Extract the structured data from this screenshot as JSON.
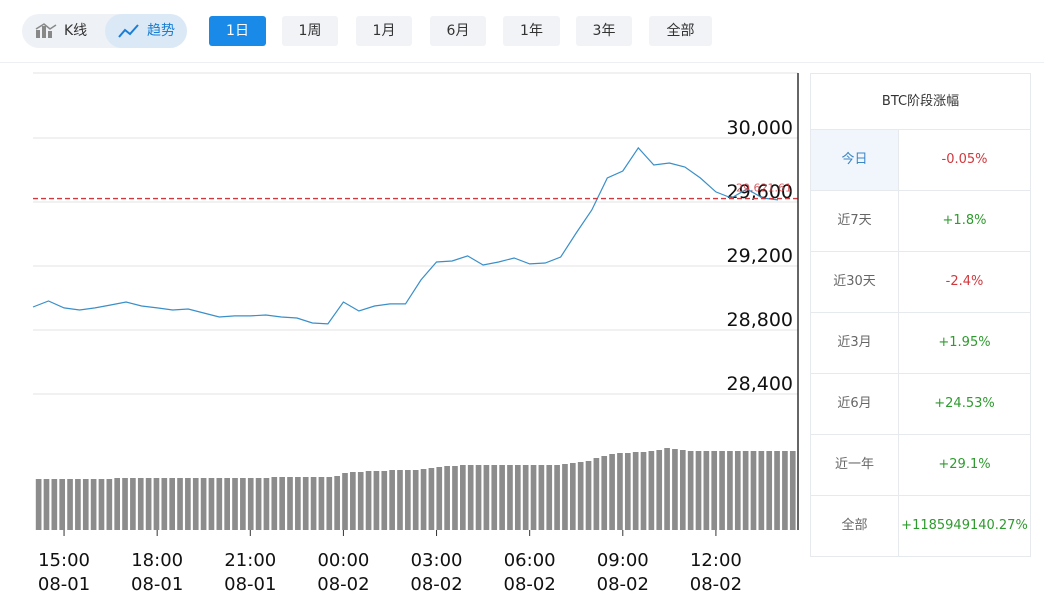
{
  "toolbar": {
    "modes": [
      "K线",
      "趋势"
    ],
    "active_mode": 1,
    "ranges": [
      "1日",
      "1周",
      "1月",
      "6月",
      "1年",
      "3年",
      "全部"
    ],
    "active_range": 0
  },
  "chart_data": [
    {
      "type": "line",
      "color": "#3a8fc8",
      "x": [
        "08-01 14:00",
        "08-01 14:30",
        "08-01 15:00",
        "08-01 15:30",
        "08-01 16:00",
        "08-01 16:30",
        "08-01 17:00",
        "08-01 17:30",
        "08-01 18:00",
        "08-01 18:30",
        "08-01 19:00",
        "08-01 19:30",
        "08-01 20:00",
        "08-01 20:30",
        "08-01 21:00",
        "08-01 21:30",
        "08-01 22:00",
        "08-01 22:30",
        "08-01 23:00",
        "08-01 23:30",
        "08-02 00:00",
        "08-02 00:30",
        "08-02 01:00",
        "08-02 01:30",
        "08-02 02:00",
        "08-02 02:30",
        "08-02 03:00",
        "08-02 03:30",
        "08-02 04:00",
        "08-02 04:30",
        "08-02 05:00",
        "08-02 05:30",
        "08-02 06:00",
        "08-02 06:30",
        "08-02 07:00",
        "08-02 07:30",
        "08-02 08:00",
        "08-02 08:30",
        "08-02 09:00",
        "08-02 09:30",
        "08-02 10:00",
        "08-02 10:30",
        "08-02 11:00",
        "08-02 11:30",
        "08-02 12:00",
        "08-02 12:30",
        "08-02 13:00",
        "08-02 13:30",
        "08-02 14:00"
      ],
      "values": [
        28944,
        28981,
        28938,
        28925,
        28938,
        28956,
        28975,
        28950,
        28938,
        28925,
        28931,
        28906,
        28881,
        28888,
        28888,
        28894,
        28881,
        28875,
        28844,
        28838,
        28975,
        28919,
        28950,
        28963,
        28963,
        29113,
        29225,
        29231,
        29263,
        29206,
        29225,
        29250,
        29213,
        29219,
        29256,
        29406,
        29550,
        29750,
        29794,
        29938,
        29831,
        29844,
        29819,
        29750,
        29663,
        29625,
        29681,
        29625,
        29613
      ],
      "xlim": [
        "08-01 14:00",
        "08-02 14:00"
      ],
      "xticks": [
        {
          "value": "08-01 15:00",
          "label": [
            "15:00",
            "08-01"
          ]
        },
        {
          "value": "08-01 18:00",
          "label": [
            "18:00",
            "08-01"
          ]
        },
        {
          "value": "08-01 21:00",
          "label": [
            "21:00",
            "08-01"
          ]
        },
        {
          "value": "08-02 00:00",
          "label": [
            "00:00",
            "08-02"
          ]
        },
        {
          "value": "08-02 03:00",
          "label": [
            "03:00",
            "08-02"
          ]
        },
        {
          "value": "08-02 06:00",
          "label": [
            "06:00",
            "08-02"
          ]
        },
        {
          "value": "08-02 09:00",
          "label": [
            "09:00",
            "08-02"
          ]
        },
        {
          "value": "08-02 12:00",
          "label": [
            "12:00",
            "08-02"
          ]
        }
      ],
      "ylim": [
        28300,
        30400
      ],
      "yticks": [
        {
          "value": 28400,
          "label": "28,400"
        },
        {
          "value": 28800,
          "label": "28,800"
        },
        {
          "value": 29200,
          "label": "29,200"
        },
        {
          "value": 29600,
          "label": "29,600"
        },
        {
          "value": 30000,
          "label": "30,000"
        }
      ],
      "grid": true,
      "reference_line": {
        "value": 29621.61,
        "label": "29,621.61",
        "color": "#d0393e"
      }
    },
    {
      "type": "bar",
      "color": "#8c8c8c",
      "ylim": [
        0,
        100
      ],
      "values": [
        51,
        51,
        51,
        51,
        51,
        51,
        51,
        51,
        51,
        51,
        52,
        52,
        52,
        52,
        52,
        52,
        52,
        52,
        52,
        52,
        52,
        52,
        52,
        52,
        52,
        52,
        52,
        52,
        52,
        52,
        53,
        53,
        53,
        53,
        53,
        53,
        53,
        53,
        54,
        57,
        58,
        58,
        59,
        59,
        59,
        60,
        60,
        60,
        60,
        61,
        62,
        63,
        64,
        64,
        65,
        65,
        65,
        65,
        65,
        65,
        65,
        65,
        65,
        65,
        65,
        65,
        65,
        66,
        67,
        68,
        69,
        72,
        74,
        76,
        77,
        77,
        78,
        78,
        79,
        80,
        82,
        81,
        80,
        79,
        79,
        79,
        79,
        79,
        79,
        79,
        79,
        79,
        79,
        79,
        79,
        79,
        79
      ]
    }
  ],
  "sidebar": {
    "title": "BTC阶段涨幅",
    "highlight_row": 0,
    "rows": [
      [
        "今日",
        "-0.05%"
      ],
      [
        "近7天",
        "+1.8%"
      ],
      [
        "近30天",
        "-2.4%"
      ],
      [
        "近3月",
        "+1.95%"
      ],
      [
        "近6月",
        "+24.53%"
      ],
      [
        "近一年",
        "+29.1%"
      ],
      [
        "全部",
        "+1185949140.27%"
      ]
    ],
    "value_colors": [
      "#d0393e",
      "#2e9b2e",
      "#d0393e",
      "#2e9b2e",
      "#2e9b2e",
      "#2e9b2e",
      "#2e9b2e"
    ]
  }
}
